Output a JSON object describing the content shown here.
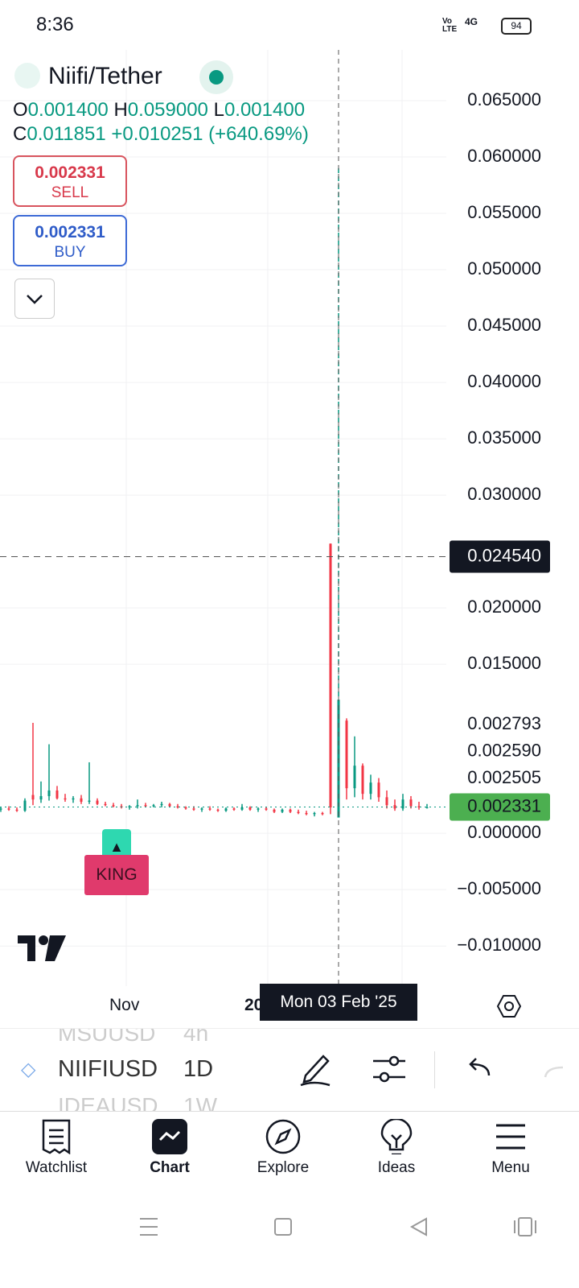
{
  "status_bar": {
    "time": "8:36",
    "network": "4G",
    "volte": "Vo LTE",
    "battery": "94"
  },
  "header": {
    "symbol": "Niifi/Tether",
    "ohlc": {
      "o_label": "O",
      "o": "0.001400",
      "h_label": "H",
      "h": "0.059000",
      "l_label": "L",
      "l": "0.001400",
      "c_label": "C",
      "c": "0.011851",
      "change": "+0.010251 (+640.69%)"
    },
    "sell": {
      "price": "0.002331",
      "label": "SELL"
    },
    "buy": {
      "price": "0.002331",
      "label": "BUY"
    }
  },
  "chart": {
    "ylim": [
      -0.0132,
      0.0695
    ],
    "yticks": [
      {
        "value": 0.065,
        "label": "0.065000"
      },
      {
        "value": 0.06,
        "label": "0.060000"
      },
      {
        "value": 0.055,
        "label": "0.055000"
      },
      {
        "value": 0.05,
        "label": "0.050000"
      },
      {
        "value": 0.045,
        "label": "0.045000"
      },
      {
        "value": 0.04,
        "label": "0.040000"
      },
      {
        "value": 0.035,
        "label": "0.035000"
      },
      {
        "value": 0.03,
        "label": "0.030000"
      },
      {
        "value": 0.02,
        "label": "0.020000"
      },
      {
        "value": 0.015,
        "label": "0.015000"
      },
      {
        "value": 0,
        "label": "0.000000"
      },
      {
        "value": -0.005,
        "label": "−0.005000"
      },
      {
        "value": -0.01,
        "label": "−0.010000"
      }
    ],
    "scale_labels": [
      "0.002793",
      "0.002590",
      "0.002505"
    ],
    "crosshair_price": {
      "value": 0.02454,
      "label": "0.024540"
    },
    "last_price": {
      "value": 0.002331,
      "label": "0.002331"
    },
    "candles": [
      [
        0.0021,
        0.0023,
        0.0019,
        0.0022
      ],
      [
        0.0022,
        0.0024,
        0.002,
        0.0021
      ],
      [
        0.0021,
        0.0023,
        0.0019,
        0.002
      ],
      [
        0.002,
        0.0031,
        0.0019,
        0.0029
      ],
      [
        0.0034,
        0.0098,
        0.0025,
        0.003
      ],
      [
        0.003,
        0.0046,
        0.0027,
        0.0033
      ],
      [
        0.0033,
        0.0079,
        0.0029,
        0.0038
      ],
      [
        0.0038,
        0.0042,
        0.003,
        0.0031
      ],
      [
        0.0031,
        0.0035,
        0.0028,
        0.003
      ],
      [
        0.003,
        0.0033,
        0.0027,
        0.0031
      ],
      [
        0.0031,
        0.0034,
        0.0026,
        0.0028
      ],
      [
        0.0028,
        0.0063,
        0.0026,
        0.0029
      ],
      [
        0.0029,
        0.0031,
        0.0025,
        0.0026
      ],
      [
        0.0026,
        0.0028,
        0.0024,
        0.0025
      ],
      [
        0.0025,
        0.0027,
        0.0023,
        0.0024
      ],
      [
        0.0024,
        0.0026,
        0.0022,
        0.0023
      ],
      [
        0.0023,
        0.0025,
        0.0021,
        0.0024
      ],
      [
        0.0024,
        0.003,
        0.0022,
        0.0025
      ],
      [
        0.0025,
        0.0027,
        0.0023,
        0.0024
      ],
      [
        0.0024,
        0.0026,
        0.0023,
        0.0025
      ],
      [
        0.0025,
        0.0028,
        0.0023,
        0.0026
      ],
      [
        0.0026,
        0.0027,
        0.0023,
        0.0024
      ],
      [
        0.0024,
        0.0026,
        0.0022,
        0.0023
      ],
      [
        0.0023,
        0.0024,
        0.0021,
        0.0022
      ],
      [
        0.0022,
        0.0024,
        0.002,
        0.0021
      ],
      [
        0.0021,
        0.0023,
        0.0019,
        0.0022
      ],
      [
        0.0022,
        0.0024,
        0.002,
        0.0021
      ],
      [
        0.0021,
        0.0022,
        0.0019,
        0.002
      ],
      [
        0.002,
        0.0023,
        0.0019,
        0.0022
      ],
      [
        0.0022,
        0.0023,
        0.002,
        0.0021
      ],
      [
        0.0021,
        0.0026,
        0.002,
        0.0023
      ],
      [
        0.0023,
        0.0024,
        0.002,
        0.0021
      ],
      [
        0.0021,
        0.0023,
        0.0019,
        0.0022
      ],
      [
        0.0022,
        0.0023,
        0.002,
        0.0021
      ],
      [
        0.0021,
        0.0022,
        0.0018,
        0.0019
      ],
      [
        0.0019,
        0.0022,
        0.0018,
        0.0021
      ],
      [
        0.0021,
        0.0022,
        0.0018,
        0.0019
      ],
      [
        0.0019,
        0.0021,
        0.0017,
        0.0018
      ],
      [
        0.0018,
        0.002,
        0.0016,
        0.0017
      ],
      [
        0.0017,
        0.0019,
        0.0015,
        0.0018
      ],
      [
        0.0018,
        0.0019,
        0.0016,
        0.0017
      ],
      [
        0.0257,
        0.0257,
        0.0017,
        0.0023
      ],
      [
        0.0014,
        0.059,
        0.0014,
        0.011851
      ],
      [
        0.01,
        0.0102,
        0.003,
        0.004
      ],
      [
        0.004,
        0.0086,
        0.0032,
        0.006
      ],
      [
        0.006,
        0.0062,
        0.003,
        0.0035
      ],
      [
        0.0035,
        0.0052,
        0.003,
        0.0045
      ],
      [
        0.0045,
        0.0049,
        0.0028,
        0.0032
      ],
      [
        0.0032,
        0.0038,
        0.0022,
        0.0025
      ],
      [
        0.0025,
        0.003,
        0.002,
        0.0022
      ],
      [
        0.0022,
        0.0035,
        0.002,
        0.003
      ],
      [
        0.003,
        0.0033,
        0.0022,
        0.0024
      ],
      [
        0.0024,
        0.0028,
        0.0021,
        0.0023
      ],
      [
        0.0023,
        0.0026,
        0.0022,
        0.0023
      ]
    ],
    "crosshair_index": 42,
    "time_labels": [
      "Nov",
      "20"
    ],
    "crosshair_date": "Mon 03 Feb '25",
    "marker": "KING"
  },
  "toolbar": {
    "symbols": [
      "MSUUSD",
      "NIIFIUSD",
      "IDEAUSD"
    ],
    "intervals": [
      "4h",
      "1D",
      "1W"
    ]
  },
  "nav": [
    "Watchlist",
    "Chart",
    "Explore",
    "Ideas",
    "Menu"
  ]
}
